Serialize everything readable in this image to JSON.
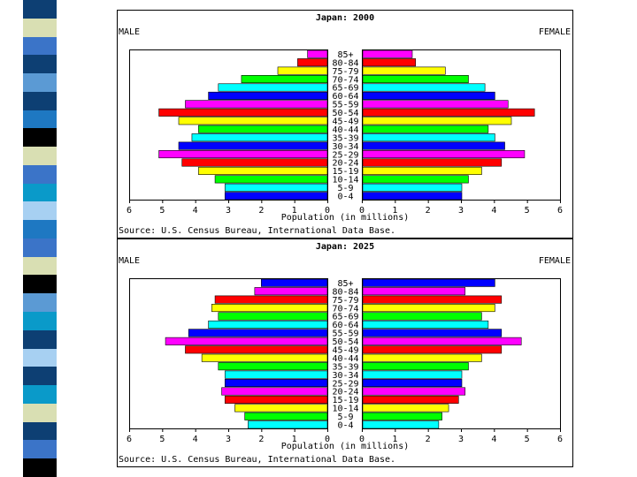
{
  "strip_colors": [
    "#0d3f73",
    "#d9dfb3",
    "#3b74c8",
    "#0d3f73",
    "#5b9ad4",
    "#0d3f73",
    "#1e78c2",
    "#000000",
    "#d9dfb3",
    "#3b74c8",
    "#0a9ac9",
    "#a7d0f2",
    "#1e78c2",
    "#3b74c8",
    "#d9dfb3",
    "#000000",
    "#5b9ad4",
    "#0a9ac9",
    "#0d3f73",
    "#a7d0f2",
    "#0d3f73",
    "#0a9ac9",
    "#d9dfb3",
    "#0d3f73",
    "#3b74c8",
    "#000000"
  ],
  "chart_data": [
    {
      "type": "bar",
      "orientation": "horizontal population pyramid",
      "title": "Japan: 2000",
      "left_label": "MALE",
      "right_label": "FEMALE",
      "xlabel": "Population (in millions)",
      "source": "Source: U.S. Census Bureau, International Data Base.",
      "xlim": [
        0,
        6
      ],
      "ticks": [
        "6",
        "5",
        "4",
        "3",
        "2",
        "1",
        "0",
        "0",
        "1",
        "2",
        "3",
        "4",
        "5",
        "6"
      ],
      "categories": [
        "85+",
        "80-84",
        "75-79",
        "70-74",
        "65-69",
        "60-64",
        "55-59",
        "50-54",
        "45-49",
        "40-44",
        "35-39",
        "30-34",
        "25-29",
        "20-24",
        "15-19",
        "10-14",
        "5-9",
        "0-4"
      ],
      "colors": [
        "#ff00ff",
        "#ff0000",
        "#ffff00",
        "#00ff00",
        "#00ffff",
        "#0000ff",
        "#ff00ff",
        "#ff0000",
        "#ffff00",
        "#00ff00",
        "#00ffff",
        "#0000ff",
        "#ff00ff",
        "#ff0000",
        "#ffff00",
        "#00ff00",
        "#00ffff",
        "#0000ff"
      ],
      "series": [
        {
          "name": "MALE",
          "values": [
            0.6,
            0.9,
            1.5,
            2.6,
            3.3,
            3.6,
            4.3,
            5.1,
            4.5,
            3.9,
            4.1,
            4.5,
            5.1,
            4.4,
            3.9,
            3.4,
            3.1,
            3.1
          ]
        },
        {
          "name": "FEMALE",
          "values": [
            1.5,
            1.6,
            2.5,
            3.2,
            3.7,
            4.0,
            4.4,
            5.2,
            4.5,
            3.8,
            4.0,
            4.3,
            4.9,
            4.2,
            3.6,
            3.2,
            3.0,
            3.0
          ]
        }
      ]
    },
    {
      "type": "bar",
      "orientation": "horizontal population pyramid",
      "title": "Japan: 2025",
      "left_label": "MALE",
      "right_label": "FEMALE",
      "xlabel": "Population (in millions)",
      "source": "Source: U.S. Census Bureau, International Data Base.",
      "xlim": [
        0,
        6
      ],
      "ticks": [
        "6",
        "5",
        "4",
        "3",
        "2",
        "1",
        "0",
        "0",
        "1",
        "2",
        "3",
        "4",
        "5",
        "6"
      ],
      "categories": [
        "85+",
        "80-84",
        "75-79",
        "70-74",
        "65-69",
        "60-64",
        "55-59",
        "50-54",
        "45-49",
        "40-44",
        "35-39",
        "30-34",
        "25-29",
        "20-24",
        "15-19",
        "10-14",
        "5-9",
        "0-4"
      ],
      "colors": [
        "#0000ff",
        "#ff00ff",
        "#ff0000",
        "#ffff00",
        "#00ff00",
        "#00ffff",
        "#0000ff",
        "#ff00ff",
        "#ff0000",
        "#ffff00",
        "#00ff00",
        "#00ffff",
        "#0000ff",
        "#ff00ff",
        "#ff0000",
        "#ffff00",
        "#00ff00",
        "#00ffff"
      ],
      "series": [
        {
          "name": "MALE",
          "values": [
            2.0,
            2.2,
            3.4,
            3.5,
            3.3,
            3.6,
            4.2,
            4.9,
            4.3,
            3.8,
            3.3,
            3.1,
            3.1,
            3.2,
            3.1,
            2.8,
            2.5,
            2.4
          ]
        },
        {
          "name": "FEMALE",
          "values": [
            4.0,
            3.1,
            4.2,
            4.0,
            3.6,
            3.8,
            4.2,
            4.8,
            4.2,
            3.6,
            3.2,
            3.0,
            3.0,
            3.1,
            2.9,
            2.6,
            2.4,
            2.3
          ]
        }
      ]
    }
  ]
}
